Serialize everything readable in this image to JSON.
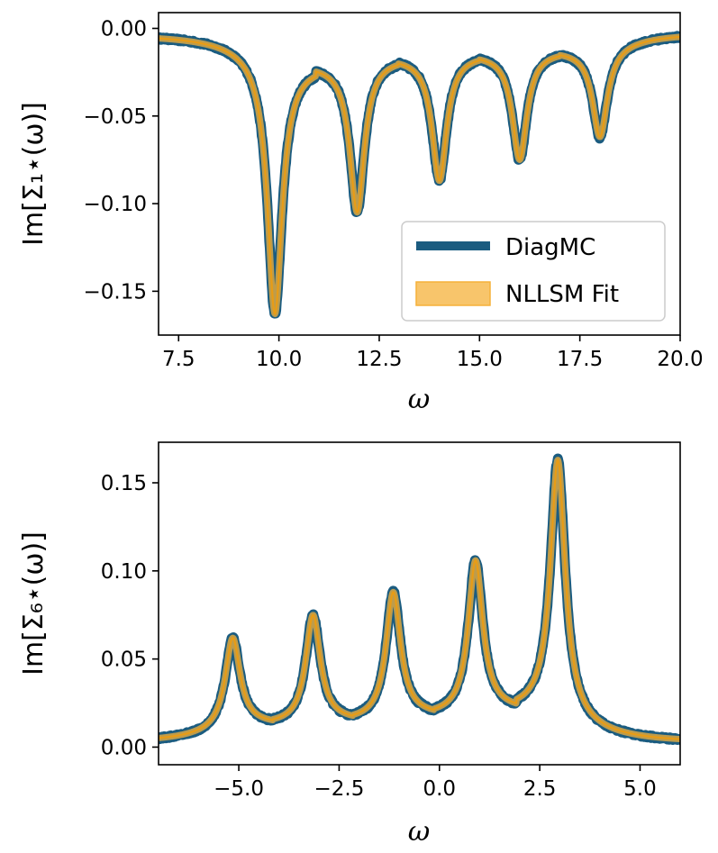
{
  "chart_data": [
    {
      "type": "line",
      "xlabel": "ω",
      "ylabel": "Im[Σ₁⋆(ω)]",
      "xlim": [
        7.0,
        20.0
      ],
      "ylim": [
        -0.175,
        0.009
      ],
      "xticks": [
        "7.5",
        "10.0",
        "12.5",
        "15.0",
        "17.5",
        "20.0"
      ],
      "yticks": [
        "0.00",
        "−0.05",
        "−0.10",
        "−0.15"
      ],
      "peaks": [
        {
          "center": 9.9,
          "value": -0.163
        },
        {
          "center": 11.95,
          "value": -0.105
        },
        {
          "center": 14.0,
          "value": -0.087
        },
        {
          "center": 16.0,
          "value": -0.075
        },
        {
          "center": 18.0,
          "value": -0.062
        }
      ],
      "between_peak_values": [
        -0.021,
        -0.017,
        -0.015,
        -0.013
      ],
      "tail_values": {
        "left": -0.004,
        "right": -0.003
      },
      "legend": {
        "position": "lower-right",
        "entries": [
          "DiagMC",
          "NLLSM Fit"
        ]
      },
      "series": [
        {
          "name": "DiagMC",
          "color": "#1b5c80"
        },
        {
          "name": "NLLSM Fit",
          "color": "#f5b13a"
        }
      ]
    },
    {
      "type": "line",
      "xlabel": "ω",
      "ylabel": "Im[Σ₆⋆(ω)]",
      "xlim": [
        -7.0,
        6.0
      ],
      "ylim": [
        -0.01,
        0.173
      ],
      "xticks": [
        "−5.0",
        "−2.5",
        "0.0",
        "2.5",
        "5.0"
      ],
      "yticks": [
        "0.00",
        "0.05",
        "0.10",
        "0.15"
      ],
      "peaks": [
        {
          "center": -5.15,
          "value": 0.062
        },
        {
          "center": -3.15,
          "value": 0.075
        },
        {
          "center": -1.15,
          "value": 0.088
        },
        {
          "center": 0.9,
          "value": 0.106
        },
        {
          "center": 2.95,
          "value": 0.163
        }
      ],
      "between_peak_values": [
        0.013,
        0.015,
        0.018,
        0.021
      ],
      "tail_values": {
        "left": 0.003,
        "right": 0.003
      },
      "series": [
        {
          "name": "DiagMC",
          "color": "#1b5c80"
        },
        {
          "name": "NLLSM Fit",
          "color": "#f5b13a"
        }
      ]
    }
  ]
}
